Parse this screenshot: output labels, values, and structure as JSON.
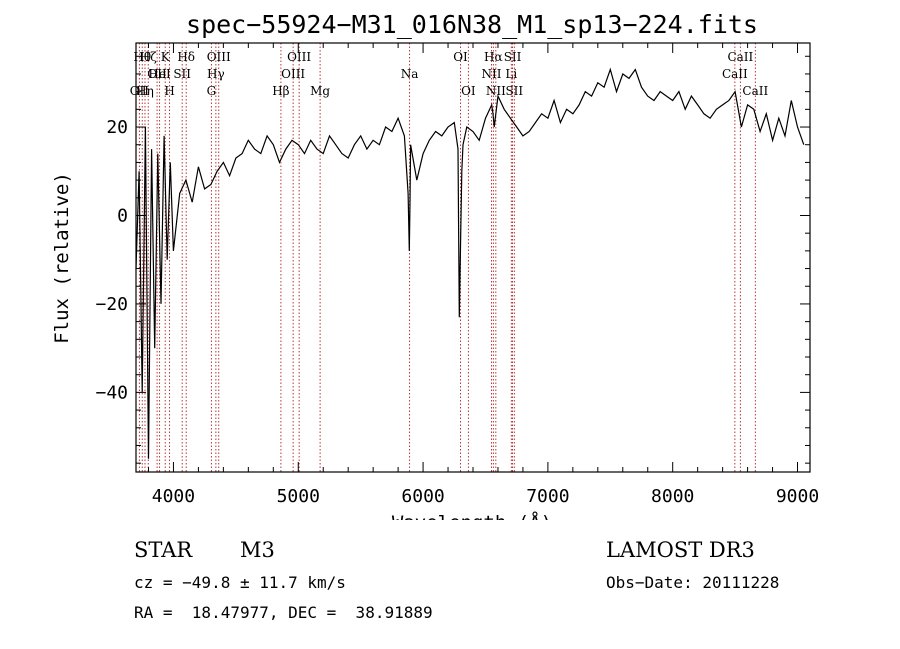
{
  "chart_data": {
    "type": "line",
    "title": "spec−55924−M31_016N38_M1_sp13−224.fits",
    "xlabel": "Wavelength (Å)",
    "ylabel": "Flux (relative)",
    "xlim": [
      3700,
      9100
    ],
    "ylim": [
      -58,
      39
    ],
    "xticks": [
      4000,
      5000,
      6000,
      7000,
      8000,
      9000
    ],
    "yticks": [
      -40,
      -20,
      0,
      20
    ],
    "xtick_labels": [
      "4000",
      "5000",
      "6000",
      "7000",
      "8000",
      "9000"
    ],
    "ytick_labels": [
      "−40",
      "−20",
      "0",
      "20"
    ],
    "series": [
      {
        "name": "flux",
        "x": [
          3700,
          3725,
          3750,
          3775,
          3800,
          3825,
          3850,
          3875,
          3900,
          3925,
          3950,
          3975,
          4000,
          4050,
          4100,
          4150,
          4200,
          4250,
          4300,
          4350,
          4400,
          4450,
          4500,
          4550,
          4600,
          4650,
          4700,
          4750,
          4800,
          4850,
          4900,
          4950,
          5000,
          5050,
          5100,
          5150,
          5200,
          5250,
          5300,
          5350,
          5400,
          5450,
          5500,
          5550,
          5600,
          5650,
          5700,
          5750,
          5800,
          5850,
          5880,
          5890,
          5895,
          5900,
          5950,
          6000,
          6050,
          6100,
          6150,
          6200,
          6250,
          6280,
          6290,
          6300,
          6310,
          6320,
          6350,
          6400,
          6450,
          6500,
          6550,
          6560,
          6570,
          6600,
          6650,
          6700,
          6750,
          6800,
          6850,
          6900,
          6950,
          7000,
          7050,
          7100,
          7150,
          7200,
          7250,
          7300,
          7350,
          7400,
          7450,
          7500,
          7550,
          7600,
          7650,
          7700,
          7750,
          7800,
          7850,
          7900,
          7950,
          8000,
          8050,
          8100,
          8150,
          8200,
          8250,
          8300,
          8350,
          8400,
          8450,
          8500,
          8550,
          8600,
          8650,
          8700,
          8750,
          8800,
          8850,
          8900,
          8950,
          9000,
          9050
        ],
        "y": [
          -12,
          10,
          -40,
          20,
          -55,
          15,
          -30,
          14,
          -20,
          18,
          -10,
          12,
          -8,
          5,
          8,
          3,
          11,
          6,
          7,
          10,
          12,
          9,
          13,
          14,
          17,
          15,
          14,
          18,
          16,
          12,
          15,
          17,
          16,
          14,
          17,
          15,
          14,
          18,
          16,
          14,
          13,
          16,
          18,
          15,
          17,
          16,
          20,
          19,
          22,
          18,
          5,
          -8,
          3,
          16,
          8,
          14,
          17,
          19,
          18,
          20,
          21,
          15,
          -23,
          -7,
          10,
          16,
          20,
          19,
          17,
          22,
          25,
          23,
          20,
          27,
          24,
          22,
          20,
          18,
          19,
          21,
          23,
          22,
          26,
          21,
          24,
          23,
          25,
          28,
          27,
          30,
          29,
          33,
          28,
          32,
          31,
          33,
          29,
          27,
          26,
          28,
          27,
          26,
          28,
          24,
          27,
          25,
          23,
          22,
          24,
          25,
          26,
          28,
          20,
          25,
          24,
          19,
          23,
          17,
          22,
          18,
          26,
          20,
          16
        ]
      }
    ],
    "lines": [
      {
        "wavelength": 3727,
        "label": "OII",
        "row": 2
      },
      {
        "wavelength": 3750,
        "label": "Hθ",
        "row": 0
      },
      {
        "wavelength": 3772,
        "label": "Hη",
        "row": 2
      },
      {
        "wavelength": 3798,
        "label": "Hζ",
        "row": 0
      },
      {
        "wavelength": 3869,
        "label": "OII",
        "row": 1
      },
      {
        "wavelength": 3889,
        "label": "HeI",
        "row": 1
      },
      {
        "wavelength": 3934,
        "label": "K",
        "row": 0
      },
      {
        "wavelength": 3969,
        "label": "H",
        "row": 2
      },
      {
        "wavelength": 4070,
        "label": "SII",
        "row": 1
      },
      {
        "wavelength": 4102,
        "label": "Hδ",
        "row": 0
      },
      {
        "wavelength": 4304,
        "label": "G",
        "row": 2
      },
      {
        "wavelength": 4340,
        "label": "Hγ",
        "row": 1
      },
      {
        "wavelength": 4363,
        "label": "OIII",
        "row": 0
      },
      {
        "wavelength": 4861,
        "label": "Hβ",
        "row": 2
      },
      {
        "wavelength": 4959,
        "label": "OIII",
        "row": 1
      },
      {
        "wavelength": 5007,
        "label": "OIII",
        "row": 0
      },
      {
        "wavelength": 5175,
        "label": "Mg",
        "row": 2
      },
      {
        "wavelength": 5892,
        "label": "Na",
        "row": 1
      },
      {
        "wavelength": 6300,
        "label": "OI",
        "row": 0
      },
      {
        "wavelength": 6363,
        "label": "OI",
        "row": 2
      },
      {
        "wavelength": 6548,
        "label": "NII",
        "row": 1
      },
      {
        "wavelength": 6563,
        "label": "Hα",
        "row": 0
      },
      {
        "wavelength": 6583,
        "label": "NII",
        "row": 2
      },
      {
        "wavelength": 6707,
        "label": "Li",
        "row": 1
      },
      {
        "wavelength": 6717,
        "label": "SII",
        "row": 0
      },
      {
        "wavelength": 6731,
        "label": "SII",
        "row": 2
      },
      {
        "wavelength": 8498,
        "label": "CaII",
        "row": 1
      },
      {
        "wavelength": 8542,
        "label": "CaII",
        "row": 0
      },
      {
        "wavelength": 8662,
        "label": "CaII",
        "row": 2
      }
    ],
    "line_color": "#b22222"
  },
  "info": {
    "class_label": "STAR",
    "subclass": "M3",
    "survey": "LAMOST DR3",
    "cz": "cz = −49.8 ± 11.7 km/s",
    "obs_date": "Obs−Date: 20111228",
    "coords": "RA =  18.47977, DEC =  38.91889"
  }
}
